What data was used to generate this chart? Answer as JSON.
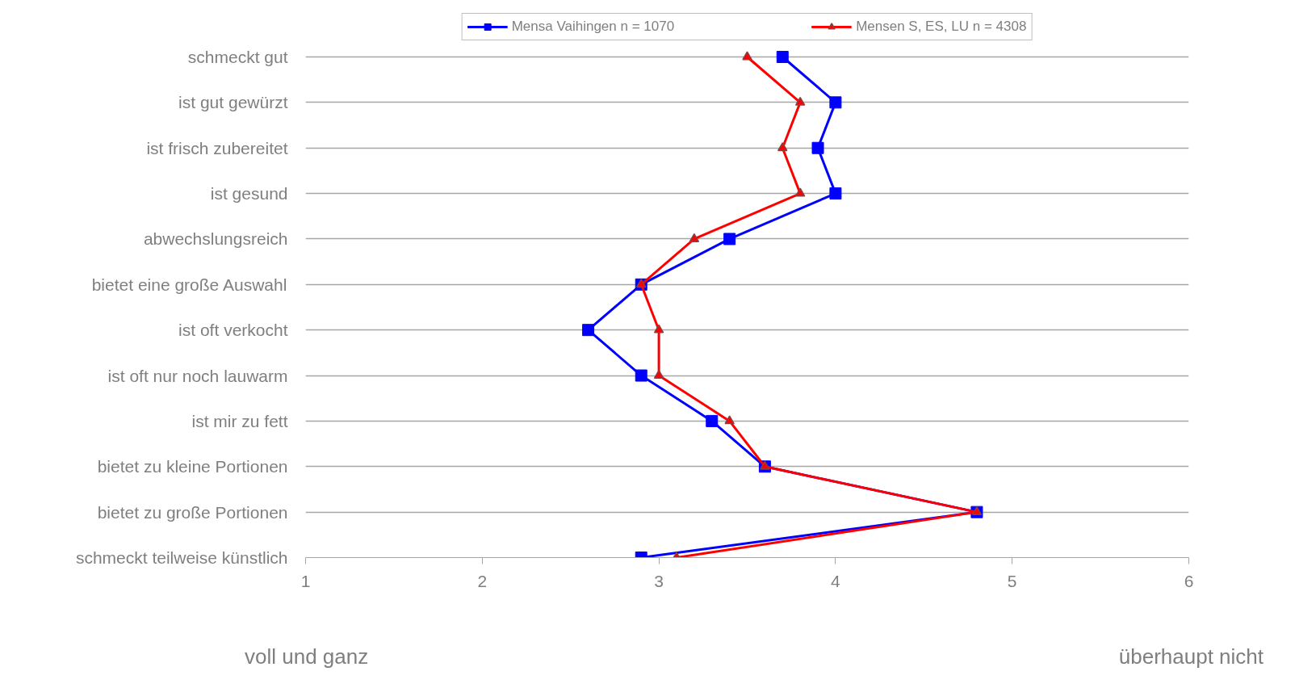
{
  "chart_data": {
    "type": "line",
    "orientation": "horizontal",
    "categories": [
      "schmeckt gut",
      "ist gut gewürzt",
      "ist frisch zubereitet",
      "ist gesund",
      "abwechslungsreich",
      "bietet eine große Auswahl",
      "ist oft verkocht",
      "ist oft nur noch lauwarm",
      "ist mir zu fett",
      "bietet zu kleine Portionen",
      "bietet zu große Portionen",
      "schmeckt teilweise künstlich"
    ],
    "series": [
      {
        "name": "Mensa Vaihingen n = 1070",
        "color": "#0000ff",
        "marker": "square",
        "values": [
          3.7,
          4.0,
          3.9,
          4.0,
          3.4,
          2.9,
          2.6,
          2.9,
          3.3,
          3.6,
          4.8,
          2.9
        ]
      },
      {
        "name": "Mensen S, ES, LU n = 4308",
        "color": "#ff0000",
        "marker": "triangle",
        "values": [
          3.5,
          3.8,
          3.7,
          3.8,
          3.2,
          2.9,
          3.0,
          3.0,
          3.4,
          3.6,
          4.8,
          3.1
        ]
      }
    ],
    "xlim": [
      1,
      6
    ],
    "xticks": [
      1,
      2,
      3,
      4,
      5,
      6
    ],
    "grid": "y",
    "legend": "top",
    "line_style": "solid",
    "annotations": [
      "voll und ganz",
      "überhaupt nicht"
    ]
  }
}
